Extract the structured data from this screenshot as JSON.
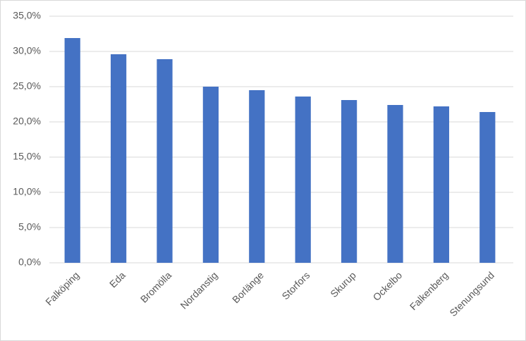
{
  "chart_data": {
    "type": "bar",
    "categories": [
      "Falköping",
      "Eda",
      "Bromölla",
      "Nordanstig",
      "Borlänge",
      "Storfors",
      "Skurup",
      "Ockelbo",
      "Falkenberg",
      "Stenungsund"
    ],
    "values": [
      31.9,
      29.6,
      28.9,
      25.0,
      24.5,
      23.6,
      23.1,
      22.4,
      22.2,
      21.4
    ],
    "color": "#4472c4",
    "ylim": [
      0,
      35
    ],
    "yticks": [
      {
        "value": 0,
        "label": "0,0%"
      },
      {
        "value": 5,
        "label": "5,0%"
      },
      {
        "value": 10,
        "label": "10,0%"
      },
      {
        "value": 15,
        "label": "15,0%"
      },
      {
        "value": 20,
        "label": "20,0%"
      },
      {
        "value": 25,
        "label": "25,0%"
      },
      {
        "value": 30,
        "label": "30,0%"
      },
      {
        "value": 35,
        "label": "35,0%"
      }
    ],
    "grid": true
  }
}
